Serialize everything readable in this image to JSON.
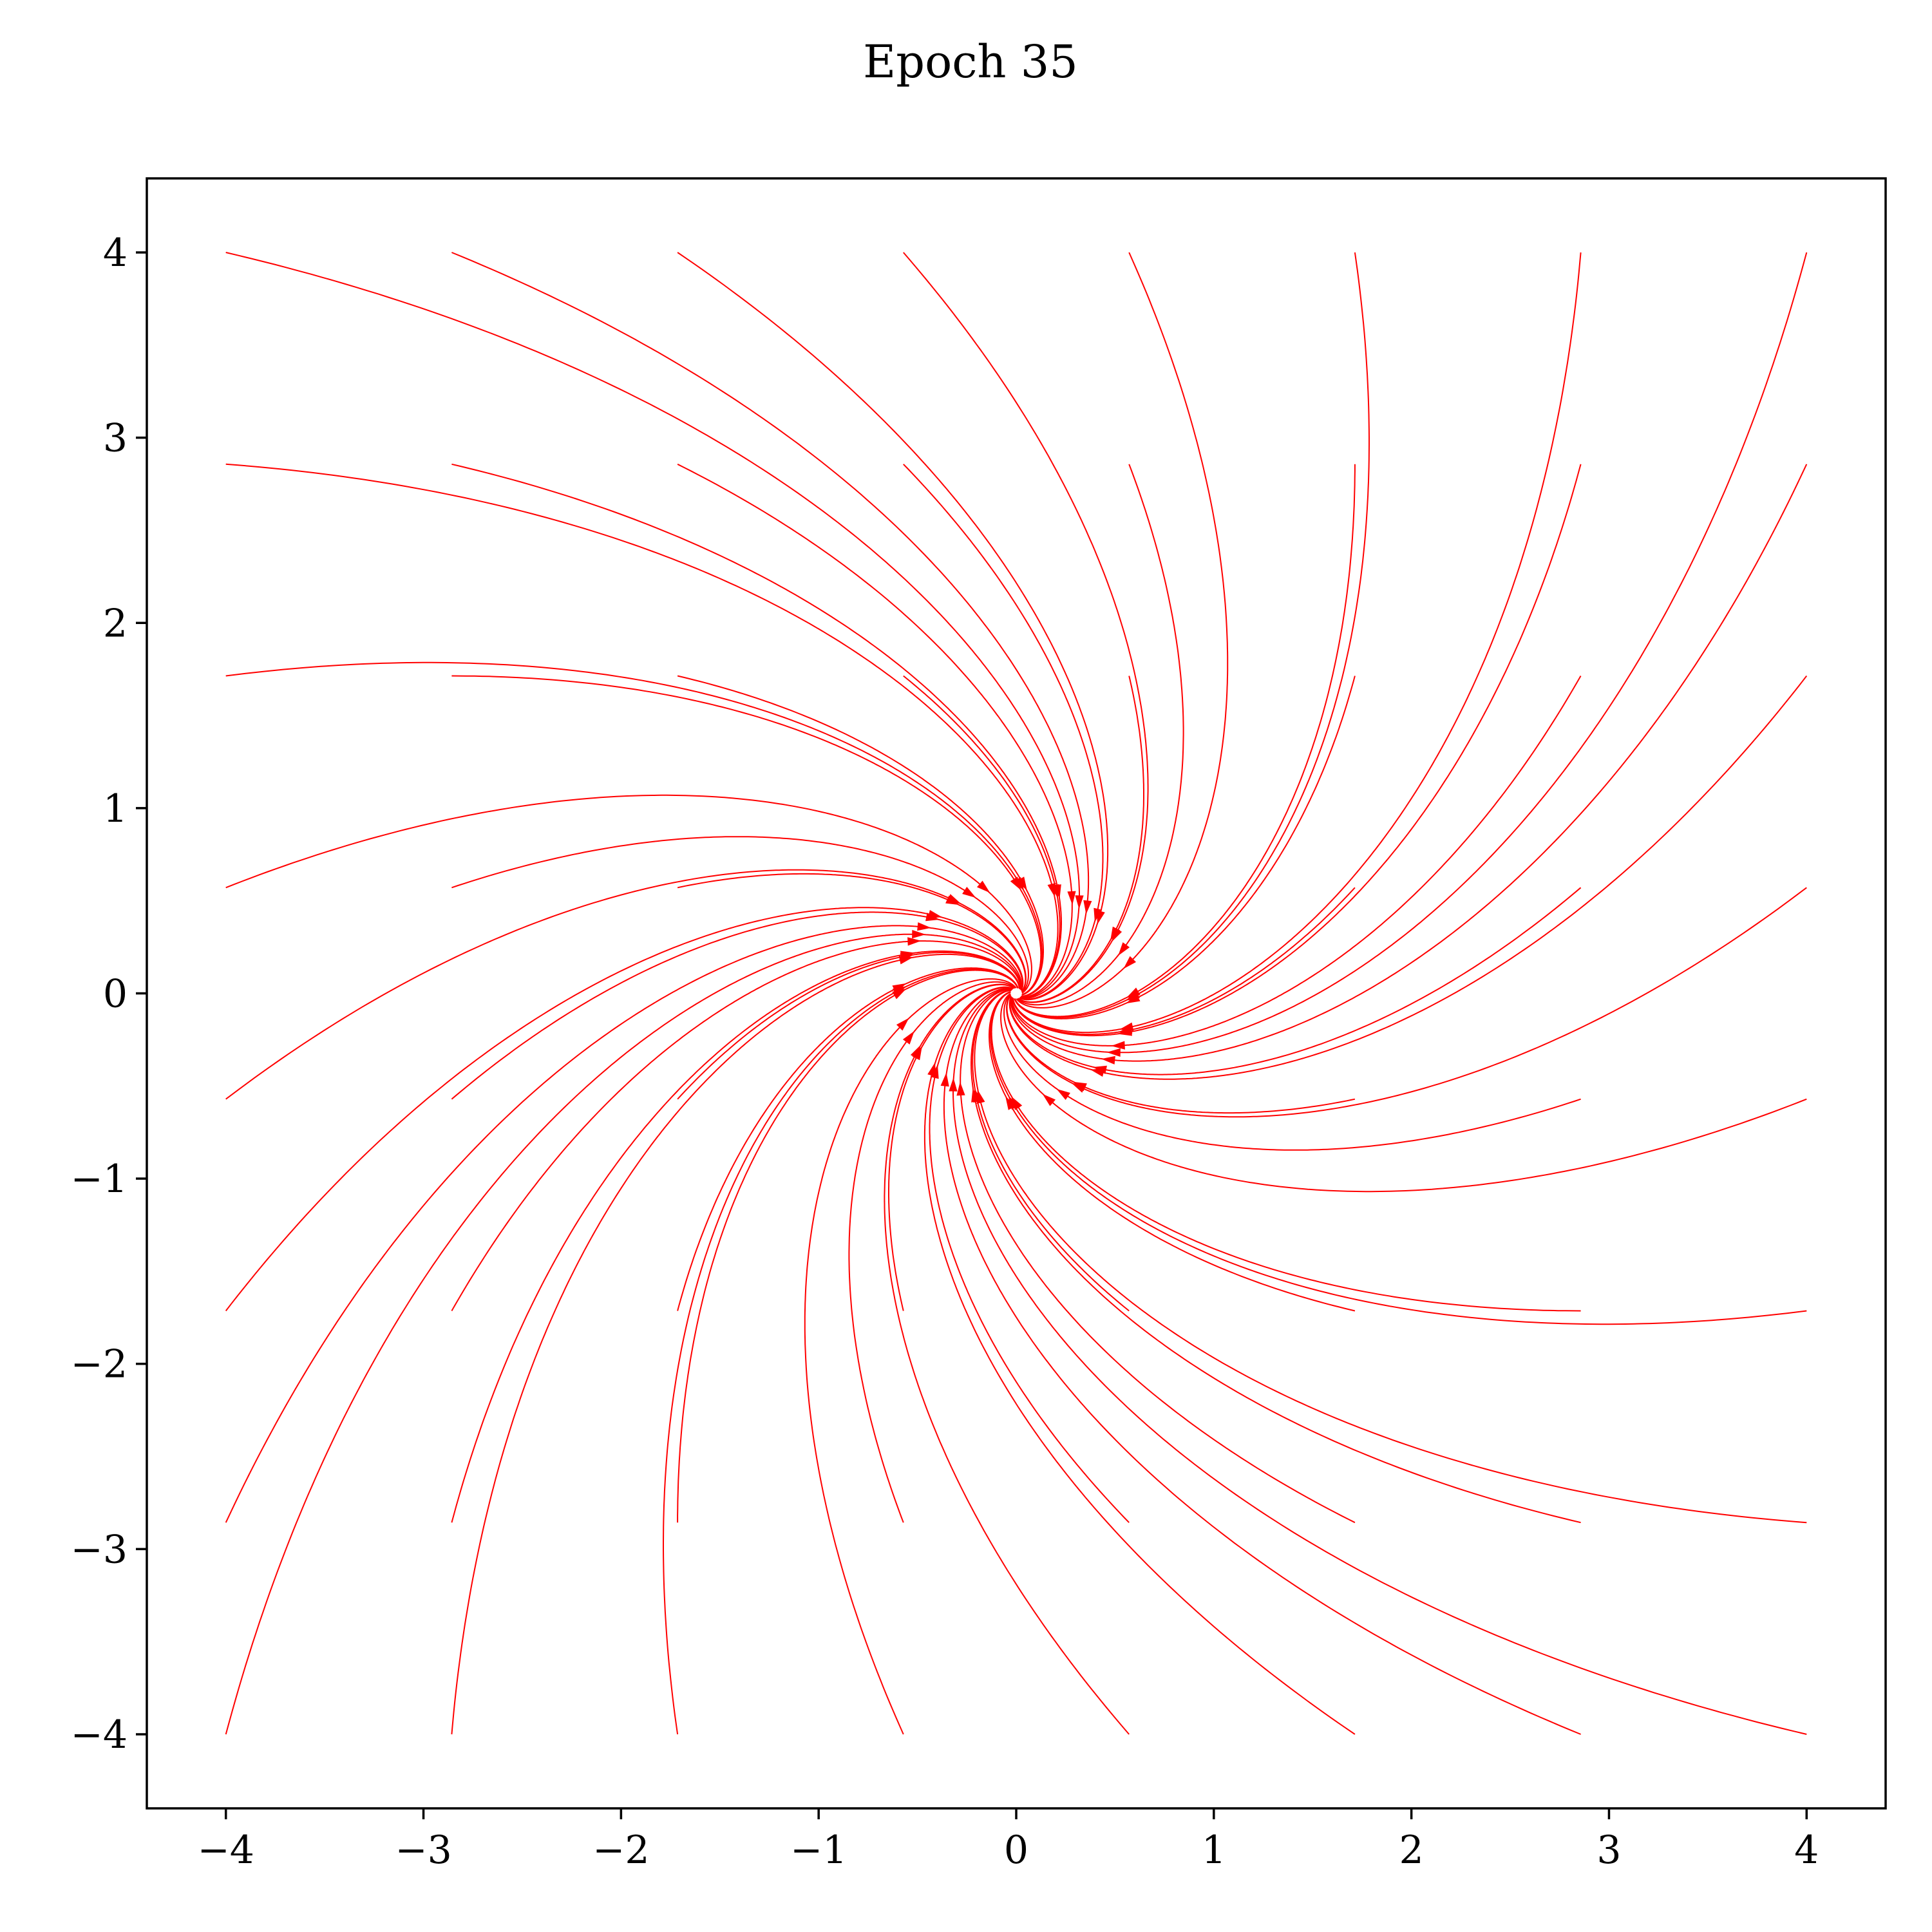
{
  "chart_data": {
    "type": "streamplot",
    "title": "Epoch 35",
    "xlabel": "",
    "ylabel": "",
    "xlim": [
      -4.4,
      4.4
    ],
    "ylim": [
      -4.4,
      4.4
    ],
    "xticks": [
      -4,
      -3,
      -2,
      -1,
      0,
      1,
      2,
      3,
      4
    ],
    "yticks": [
      -4,
      -3,
      -2,
      -1,
      0,
      1,
      2,
      3,
      4
    ],
    "xtick_labels": [
      "−4",
      "−3",
      "−2",
      "−1",
      "0",
      "1",
      "2",
      "3",
      "4"
    ],
    "ytick_labels": [
      "−4",
      "−3",
      "−2",
      "−1",
      "0",
      "1",
      "2",
      "3",
      "4"
    ],
    "grid": false,
    "color": "#ff0000",
    "seed_grid": {
      "values": [
        -4,
        -2.857,
        -1.714,
        -0.571,
        0.571,
        1.714,
        2.857,
        4
      ],
      "description_of_flow": "spiral sink"
    },
    "field": {
      "kind": "spiral_sink",
      "rotation": "clockwise",
      "attractor": [
        0,
        0
      ],
      "decay_rate": 1.0,
      "rotation_rate": 0.6
    }
  }
}
